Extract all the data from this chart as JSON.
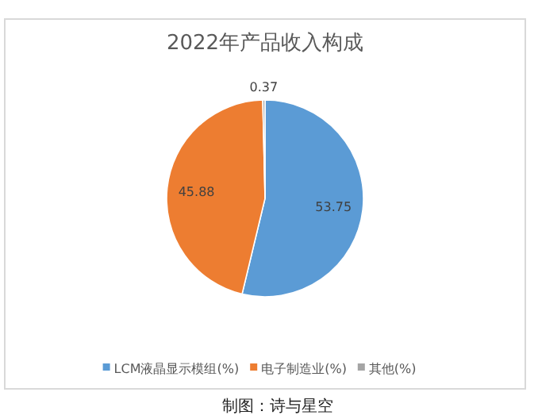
{
  "chart_data": {
    "type": "pie",
    "title": "2022年产品收入构成",
    "categories": [
      "LCM液晶显示模组(%)",
      "电子制造业(%)",
      "其他(%)"
    ],
    "values": [
      53.75,
      45.88,
      0.37
    ],
    "colors": [
      "#5b9bd5",
      "#ed7d31",
      "#a5a5a5"
    ],
    "data_labels": true,
    "legend": "bottom",
    "annotations": [
      "制图：诗与星空"
    ]
  }
}
